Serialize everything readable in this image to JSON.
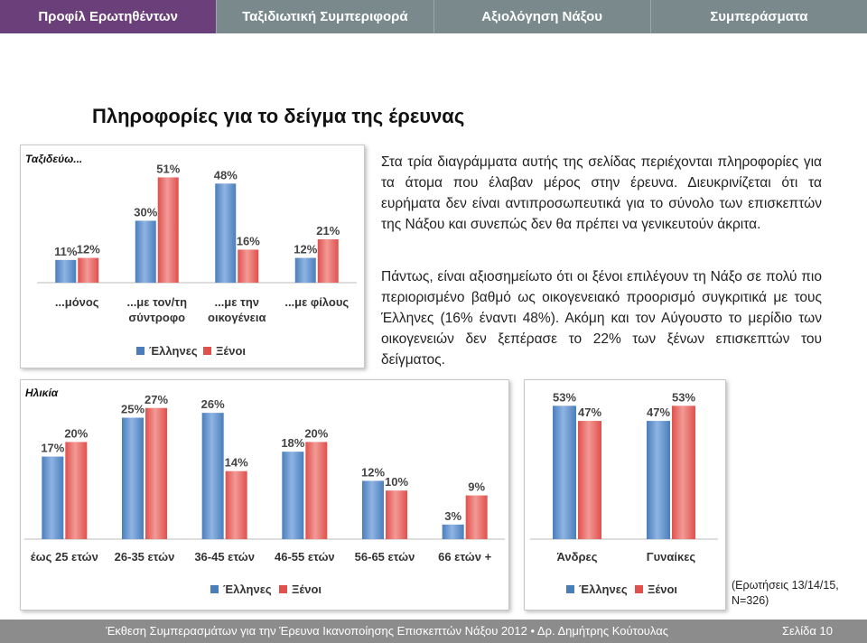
{
  "nav": {
    "tabs": [
      {
        "label": "Προφίλ Ερωτηθέντων",
        "active": true
      },
      {
        "label": "Ταξιδιωτική Συμπεριφορά",
        "active": false
      },
      {
        "label": "Αξιολόγηση Νάξου",
        "active": false
      },
      {
        "label": "Συμπεράσματα",
        "active": false
      }
    ]
  },
  "page_title": "Πληροφορίες για το δείγμα της έρευνας",
  "paragraphs": [
    "Στα τρία διαγράμματα αυτής της σελίδας περιέχονται πληροφορίες για τα άτομα που έλαβαν μέρος στην έρευνα. Διευκρινίζεται ότι τα ευρήματα δεν είναι αντιπροσωπευτικά για το σύνολο των επισκεπτών της Νάξου και συνεπώς δεν θα πρέπει να γενικευτούν άκριτα.",
    "Πάντως, είναι αξιοσημείωτο ότι οι ξένοι επιλέγουν τη Νάξο σε πολύ πιο περιορισμένο βαθμό ως οικογενειακό προορισμό συγκριτικά με τους Έλληνες (16% έναντι 48%). Ακόμη και τον Αύγουστο το μερίδιο των οικογενειών δεν ξεπέρασε το 22% των ξένων επισκεπτών του δείγματος."
  ],
  "note": "(Ερωτήσεις 13/14/15, N=326)",
  "footer": {
    "text": "Έκθεση Συμπερασμάτων για την Έρευνα Ικανοποίησης Επισκεπτών Νάξου 2012 • Δρ. Δημήτρης Κούτουλας",
    "page": "Σελίδα  10"
  },
  "colors": {
    "greeks": "#4a7ebb",
    "foreigners": "#e0504c",
    "nav_active": "#6b3f7a",
    "nav_bg": "#7a8a8c",
    "footer_bg": "#8c8c8c"
  },
  "chart_data": [
    {
      "type": "bar",
      "title": "Ταξιδεύω...",
      "categories": [
        "...μόνος",
        "...με τον/τη σύντροφο",
        "...με την οικογένεια",
        "...με φίλους"
      ],
      "series": [
        {
          "name": "Έλληνες",
          "values": [
            11,
            30,
            48,
            12
          ]
        },
        {
          "name": "Ξένοι",
          "values": [
            12,
            51,
            16,
            21
          ]
        }
      ],
      "value_suffix": "%",
      "legend": "bottom"
    },
    {
      "type": "bar",
      "title": "Ηλικία",
      "categories": [
        "έως 25 ετών",
        "26-35 ετών",
        "36-45 ετών",
        "46-55 ετών",
        "56-65 ετών",
        "66 ετών +"
      ],
      "series": [
        {
          "name": "Έλληνες",
          "values": [
            17,
            25,
            26,
            18,
            12,
            3
          ]
        },
        {
          "name": "Ξένοι",
          "values": [
            20,
            27,
            14,
            20,
            10,
            9
          ]
        }
      ],
      "value_suffix": "%",
      "legend": "bottom"
    },
    {
      "type": "bar",
      "title": "",
      "categories": [
        "Άνδρες",
        "Γυναίκες"
      ],
      "series": [
        {
          "name": "Έλληνες",
          "values": [
            53,
            47
          ]
        },
        {
          "name": "Ξένοι",
          "values": [
            47,
            53
          ]
        }
      ],
      "value_suffix": "%",
      "legend": "bottom"
    }
  ]
}
